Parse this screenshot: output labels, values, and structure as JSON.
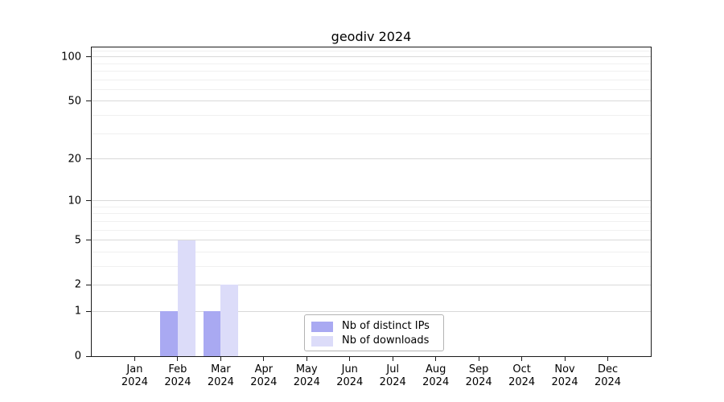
{
  "figure": {
    "background": "#ffffff"
  },
  "chart_data": {
    "type": "bar",
    "title": "geodiv 2024",
    "xlabel": "",
    "ylabel": "",
    "categories": [
      "Jan 2024",
      "Feb 2024",
      "Mar 2024",
      "Apr 2024",
      "May 2024",
      "Jun 2024",
      "Jul 2024",
      "Aug 2024",
      "Sep 2024",
      "Oct 2024",
      "Nov 2024",
      "Dec 2024"
    ],
    "x_tick_labels": [
      [
        "Jan",
        "2024"
      ],
      [
        "Feb",
        "2024"
      ],
      [
        "Mar",
        "2024"
      ],
      [
        "Apr",
        "2024"
      ],
      [
        "May",
        "2024"
      ],
      [
        "Jun",
        "2024"
      ],
      [
        "Jul",
        "2024"
      ],
      [
        "Aug",
        "2024"
      ],
      [
        "Sep",
        "2024"
      ],
      [
        "Oct",
        "2024"
      ],
      [
        "Nov",
        "2024"
      ],
      [
        "Dec",
        "2024"
      ]
    ],
    "series": [
      {
        "name": "Nb of distinct IPs",
        "color": "#a9a9f2",
        "values": [
          0,
          1,
          1,
          0,
          0,
          0,
          0,
          0,
          0,
          0,
          0,
          0
        ]
      },
      {
        "name": "Nb of downloads",
        "color": "#dcdcf9",
        "values": [
          0,
          5,
          2,
          0,
          0,
          0,
          0,
          0,
          0,
          0,
          0,
          0
        ]
      }
    ],
    "y_scale": "log1p",
    "ylim": [
      0,
      116
    ],
    "y_ticks": [
      0,
      1,
      2,
      5,
      10,
      20,
      50,
      100
    ],
    "y_minor_gridlines": [
      3,
      4,
      6,
      7,
      8,
      9,
      30,
      40,
      60,
      70,
      80,
      90,
      110
    ],
    "grid": "horizontal",
    "legend_position": "inside-bottom-center",
    "style": {
      "major_grid_color": "#d9d9d9",
      "minor_grid_color": "#f0f0f0",
      "spine_color": "#1a1a1a",
      "text_color": "#000000",
      "legend_border_color": "#b3b3b3"
    }
  }
}
